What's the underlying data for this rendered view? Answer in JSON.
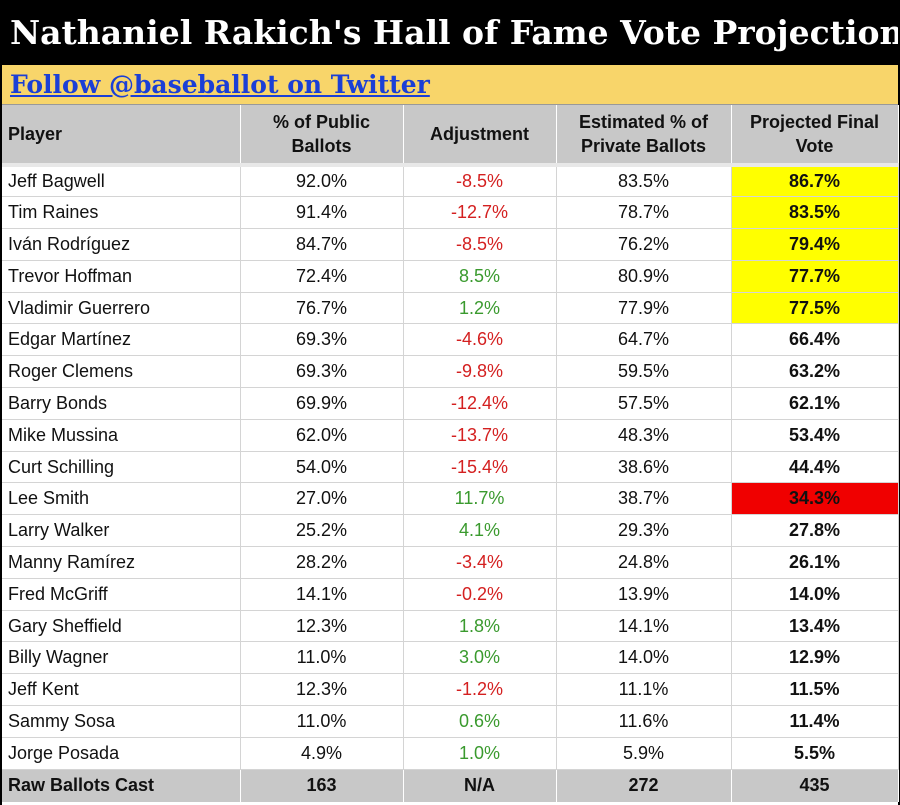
{
  "title": "Nathaniel Rakich's Hall of Fame Vote Projections",
  "follow_link": "Follow @baseballot on Twitter",
  "headers": {
    "player": "Player",
    "public_line1": "% of Public",
    "public_line2": "Ballots",
    "adjustment": "Adjustment",
    "private_line1": "Estimated % of",
    "private_line2": "Private Ballots",
    "projected_line1": "Projected Final",
    "projected_line2": "Vote"
  },
  "rows": [
    {
      "player": "Jeff Bagwell",
      "public": "92.0%",
      "adjustment": "-8.5%",
      "private": "83.5%",
      "projected": "86.7%"
    },
    {
      "player": "Tim Raines",
      "public": "91.4%",
      "adjustment": "-12.7%",
      "private": "78.7%",
      "projected": "83.5%"
    },
    {
      "player": "Iván Rodríguez",
      "public": "84.7%",
      "adjustment": "-8.5%",
      "private": "76.2%",
      "projected": "79.4%"
    },
    {
      "player": "Trevor Hoffman",
      "public": "72.4%",
      "adjustment": "8.5%",
      "private": "80.9%",
      "projected": "77.7%"
    },
    {
      "player": "Vladimir Guerrero",
      "public": "76.7%",
      "adjustment": "1.2%",
      "private": "77.9%",
      "projected": "77.5%"
    },
    {
      "player": "Edgar Martínez",
      "public": "69.3%",
      "adjustment": "-4.6%",
      "private": "64.7%",
      "projected": "66.4%"
    },
    {
      "player": "Roger Clemens",
      "public": "69.3%",
      "adjustment": "-9.8%",
      "private": "59.5%",
      "projected": "63.2%"
    },
    {
      "player": "Barry Bonds",
      "public": "69.9%",
      "adjustment": "-12.4%",
      "private": "57.5%",
      "projected": "62.1%"
    },
    {
      "player": "Mike Mussina",
      "public": "62.0%",
      "adjustment": "-13.7%",
      "private": "48.3%",
      "projected": "53.4%"
    },
    {
      "player": "Curt Schilling",
      "public": "54.0%",
      "adjustment": "-15.4%",
      "private": "38.6%",
      "projected": "44.4%"
    },
    {
      "player": "Lee Smith",
      "public": "27.0%",
      "adjustment": "11.7%",
      "private": "38.7%",
      "projected": "34.3%"
    },
    {
      "player": "Larry Walker",
      "public": "25.2%",
      "adjustment": "4.1%",
      "private": "29.3%",
      "projected": "27.8%"
    },
    {
      "player": "Manny Ramírez",
      "public": "28.2%",
      "adjustment": "-3.4%",
      "private": "24.8%",
      "projected": "26.1%"
    },
    {
      "player": "Fred McGriff",
      "public": "14.1%",
      "adjustment": "-0.2%",
      "private": "13.9%",
      "projected": "14.0%"
    },
    {
      "player": "Gary Sheffield",
      "public": "12.3%",
      "adjustment": "1.8%",
      "private": "14.1%",
      "projected": "13.4%"
    },
    {
      "player": "Billy Wagner",
      "public": "11.0%",
      "adjustment": "3.0%",
      "private": "14.0%",
      "projected": "12.9%"
    },
    {
      "player": "Jeff Kent",
      "public": "12.3%",
      "adjustment": "-1.2%",
      "private": "11.1%",
      "projected": "11.5%"
    },
    {
      "player": "Sammy Sosa",
      "public": "11.0%",
      "adjustment": "0.6%",
      "private": "11.6%",
      "projected": "11.4%"
    },
    {
      "player": "Jorge Posada",
      "public": "4.9%",
      "adjustment": "1.0%",
      "private": "5.9%",
      "projected": "5.5%"
    }
  ],
  "footer": {
    "label": "Raw Ballots Cast",
    "public": "163",
    "adjustment": "N/A",
    "private": "272",
    "projected": "435"
  },
  "colors": {
    "highlight_yellow": "#ffff00",
    "highlight_red": "#f00000",
    "negative_text": "#d42020",
    "positive_text": "#3a9a2e"
  }
}
